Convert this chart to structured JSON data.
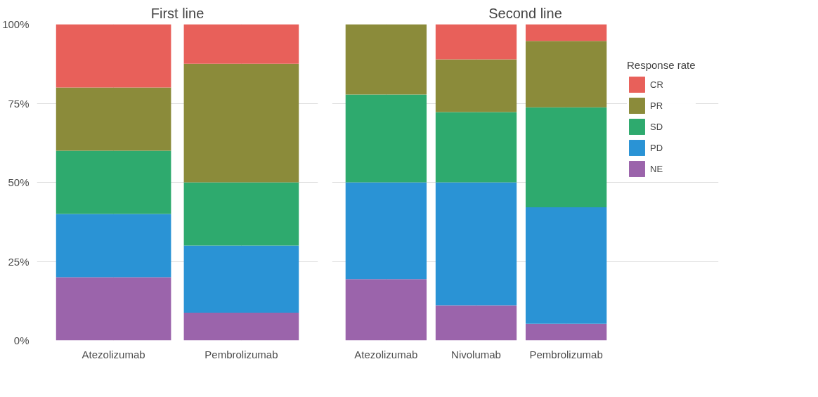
{
  "chart_data": [
    {
      "type": "bar",
      "title": "First line",
      "categories": [
        "Atezolizumab",
        "Pembrolizumab"
      ],
      "stacked": true,
      "ylim": [
        0,
        100
      ],
      "yticks": [
        {
          "value": 0,
          "label": "0%"
        },
        {
          "value": 25,
          "label": "25%"
        },
        {
          "value": 50,
          "label": "50%"
        },
        {
          "value": 75,
          "label": "75%"
        },
        {
          "value": 100,
          "label": "100%"
        }
      ],
      "grid": true,
      "series": [
        {
          "color": "#9b64ab",
          "values": [
            20,
            8.8
          ]
        },
        {
          "color": "#2a93d5",
          "values": [
            20,
            21.2
          ]
        },
        {
          "color": "#2eaa6e",
          "values": [
            20,
            20
          ]
        },
        {
          "color": "#8b8b3a",
          "values": [
            20,
            37.5
          ]
        },
        {
          "color": "#e8605a",
          "values": [
            20,
            12.5
          ]
        }
      ]
    },
    {
      "type": "bar",
      "title": "Second line",
      "categories": [
        "Atezolizumab",
        "Nivolumab",
        "Pembrolizumab"
      ],
      "stacked": true,
      "ylim": [
        0,
        100
      ],
      "yticks": [
        0,
        25,
        50,
        75,
        100
      ],
      "grid": true,
      "legend": "right",
      "legend_title": "Response rate",
      "tick_labels": "x",
      "series": [
        {
          "name": "NE",
          "color": "#9b64ab",
          "values": [
            19.4,
            11.1,
            5.3
          ]
        },
        {
          "name": "PD",
          "color": "#2a93d5",
          "values": [
            30.6,
            38.9,
            36.8
          ]
        },
        {
          "name": "SD",
          "color": "#2eaa6e",
          "values": [
            27.8,
            22.2,
            31.6
          ]
        },
        {
          "name": "PR",
          "color": "#8b8b3a",
          "values": [
            22.2,
            16.7,
            21.0
          ]
        },
        {
          "name": "CR",
          "color": "#e8605a",
          "values": [
            0,
            11.1,
            5.3
          ]
        }
      ]
    }
  ]
}
